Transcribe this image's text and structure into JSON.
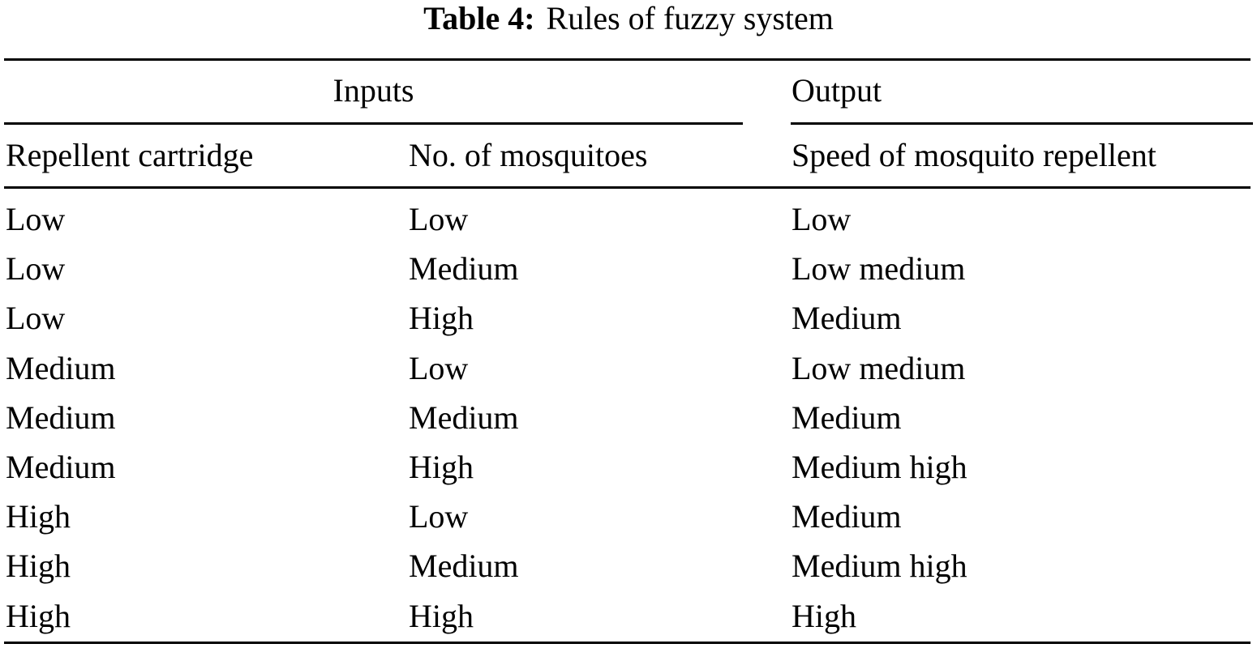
{
  "table": {
    "caption_label": "Table 4:",
    "caption_text": "Rules of fuzzy system",
    "group_headers": {
      "inputs": "Inputs",
      "output": "Output"
    },
    "columns": [
      "Repellent cartridge",
      "No. of mosquitoes",
      "Speed of mosquito repellent"
    ],
    "rows": [
      [
        "Low",
        "Low",
        "Low"
      ],
      [
        "Low",
        "Medium",
        "Low medium"
      ],
      [
        "Low",
        "High",
        "Medium"
      ],
      [
        "Medium",
        "Low",
        "Low medium"
      ],
      [
        "Medium",
        "Medium",
        "Medium"
      ],
      [
        "Medium",
        "High",
        "Medium high"
      ],
      [
        "High",
        "Low",
        "Medium"
      ],
      [
        "High",
        "Medium",
        "Medium high"
      ],
      [
        "High",
        "High",
        "High"
      ]
    ]
  }
}
